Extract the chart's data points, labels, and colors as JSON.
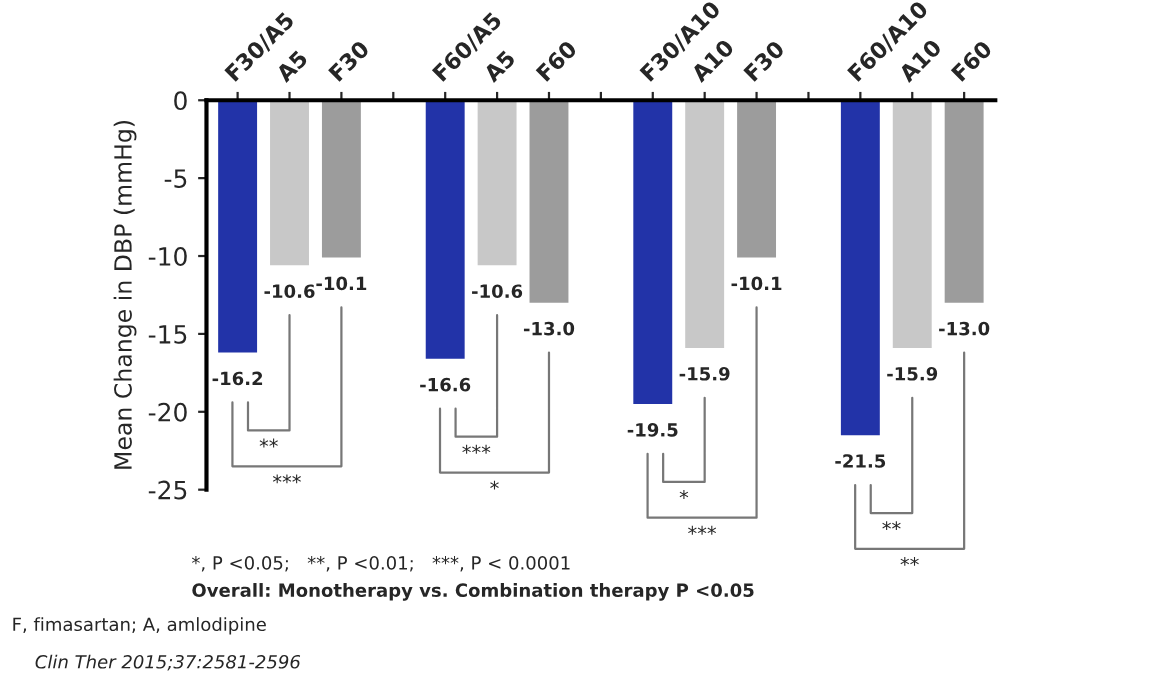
{
  "chart_data": {
    "type": "bar",
    "ylabel": "Mean Change in DBP (mmHg)",
    "categories": [
      "F30/A5",
      "A5",
      "F30",
      null,
      "F60/A5",
      "A5",
      "F60",
      null,
      "F30/A10",
      "A10",
      "F30",
      null,
      "F60/A10",
      "A10",
      "F60"
    ],
    "values": [
      -16.2,
      -10.6,
      -10.1,
      null,
      -16.6,
      -10.6,
      -13.0,
      null,
      -19.5,
      -15.9,
      -10.1,
      null,
      -21.5,
      -15.9,
      -13.0
    ],
    "colors": [
      "#2233a8",
      "#c8c8c8",
      "#9c9c9c",
      null,
      "#2233a8",
      "#c8c8c8",
      "#9c9c9c",
      null,
      "#2233a8",
      "#c8c8c8",
      "#9c9c9c",
      null,
      "#2233a8",
      "#c8c8c8",
      "#9c9c9c"
    ],
    "ylim": [
      -25,
      0
    ],
    "yticks": [
      -25,
      -20,
      -15,
      -10,
      -5,
      0
    ],
    "value_labels": [
      "-16.2",
      "-10.6",
      "-10.1",
      null,
      "-16.6",
      "-10.6",
      "-13.0",
      null,
      "-19.5",
      "-15.9",
      "-10.1",
      null,
      "-21.5",
      "-15.9",
      "-13.0"
    ],
    "grid": false,
    "legend": false,
    "annotations": [
      "**",
      "***",
      "***",
      "*",
      "*",
      "***",
      "**",
      "**",
      "*, P <0.05;   **, P <0.01;   ***, P < 0.0001",
      "Overall: Monotherapy vs. Combination therapy P <0.05",
      "F, fimasartan; A, amlodipine",
      "Clin Ther 2015;37:2581-2596"
    ]
  }
}
